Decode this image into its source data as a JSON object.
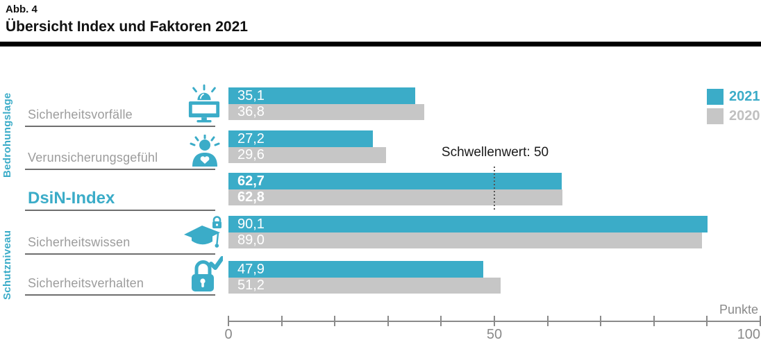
{
  "header": {
    "figure_label": "Abb. 4",
    "title": "Übersicht Index und Faktoren 2021"
  },
  "groups": {
    "top": "Bedrohungslage",
    "bottom": "Schutzniveau"
  },
  "rows": [
    {
      "label": "Sicherheitsvorfälle",
      "icon": "alarm-monitor-icon",
      "value_2021": "35,1",
      "value_2020": "36,8",
      "emphasis": false
    },
    {
      "label": "Verunsicherungsgefühl",
      "icon": "person-alert-heart-icon",
      "value_2021": "27,2",
      "value_2020": "29,6",
      "emphasis": false
    },
    {
      "label": "DsiN-Index",
      "icon": null,
      "value_2021": "62,7",
      "value_2020": "62,8",
      "emphasis": true
    },
    {
      "label": "Sicherheitswissen",
      "icon": "graduation-cap-lock-icon",
      "value_2021": "90,1",
      "value_2020": "89,0",
      "emphasis": false
    },
    {
      "label": "Sicherheitsverhalten",
      "icon": "padlock-check-icon",
      "value_2021": "47,9",
      "value_2020": "51,2",
      "emphasis": false
    }
  ],
  "threshold": {
    "label": "Schwellenwert: 50",
    "value": 50
  },
  "legend": [
    {
      "label": "2021",
      "color": "#3BACC8",
      "text_color": "#3BACC8"
    },
    {
      "label": "2020",
      "color": "#C6C6C6",
      "text_color": "#C0C0C0"
    }
  ],
  "axis": {
    "min": 0,
    "max": 100,
    "tick_step": 10,
    "tick_labels": [
      "0",
      "50",
      "100"
    ],
    "unit_label": "Punkte"
  },
  "colors": {
    "accent_teal": "#3BACC8",
    "bar_gray": "#C6C6C6",
    "label_gray": "#9C9C9C",
    "axis_gray": "#8A8A8A"
  },
  "chart_data": {
    "type": "bar",
    "orientation": "horizontal",
    "title": "Übersicht Index und Faktoren 2021",
    "categories": [
      "Sicherheitsvorfälle",
      "Verunsicherungsgefühl",
      "DsiN-Index",
      "Sicherheitswissen",
      "Sicherheitsverhalten"
    ],
    "series": [
      {
        "name": "2021",
        "color": "#3BACC8",
        "values": [
          35.1,
          27.2,
          62.7,
          90.1,
          47.9
        ]
      },
      {
        "name": "2020",
        "color": "#C6C6C6",
        "values": [
          36.8,
          29.6,
          62.8,
          89.0,
          51.2
        ]
      }
    ],
    "xlim": [
      0,
      100
    ],
    "xlabel": "Punkte",
    "annotations": [
      {
        "text": "Schwellenwert: 50",
        "x": 50,
        "style": "dotted-vertical-line"
      }
    ],
    "legend_position": "top-right",
    "grid": false,
    "category_groups": [
      {
        "name": "Bedrohungslage",
        "categories": [
          "Sicherheitsvorfälle",
          "Verunsicherungsgefühl"
        ]
      },
      {
        "name": "Schutzniveau",
        "categories": [
          "Sicherheitswissen",
          "Sicherheitsverhalten"
        ]
      }
    ]
  }
}
